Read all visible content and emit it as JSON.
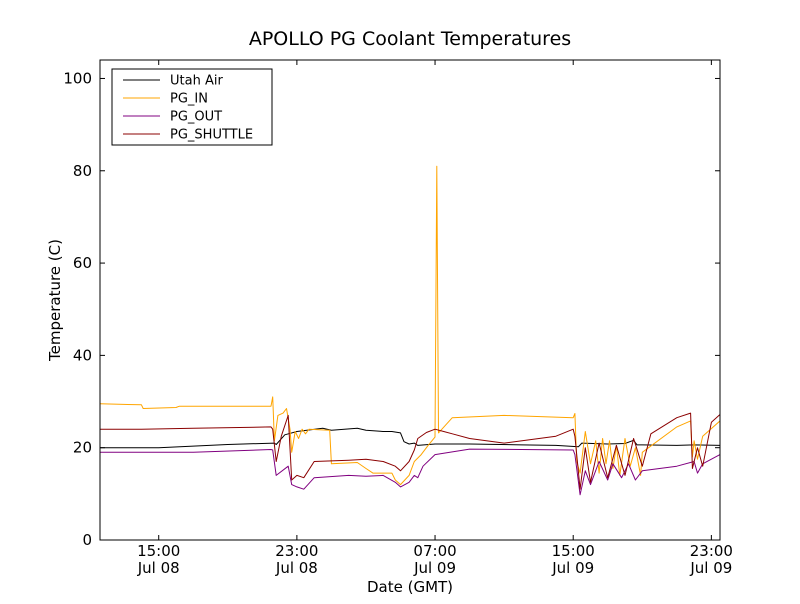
{
  "chart_data": {
    "type": "line",
    "title": "APOLLO PG Coolant Temperatures",
    "xlabel": "Date (GMT)",
    "ylabel": "Temperature (C)",
    "x_units": "hours since Jul 08 00:00 GMT",
    "xlim": [
      11.6,
      47.5
    ],
    "ylim": [
      0,
      104
    ],
    "grid": false,
    "legend_position": "top-left",
    "y_ticks": [
      {
        "value": 0,
        "label": "0"
      },
      {
        "value": 20,
        "label": "20"
      },
      {
        "value": 40,
        "label": "40"
      },
      {
        "value": 60,
        "label": "60"
      },
      {
        "value": 80,
        "label": "80"
      },
      {
        "value": 100,
        "label": "100"
      }
    ],
    "x_ticks": [
      {
        "value": 15,
        "time": "15:00",
        "date": "Jul 08"
      },
      {
        "value": 23,
        "time": "23:00",
        "date": "Jul 08"
      },
      {
        "value": 31,
        "time": "07:00",
        "date": "Jul 09"
      },
      {
        "value": 39,
        "time": "15:00",
        "date": "Jul 09"
      },
      {
        "value": 47,
        "time": "23:00",
        "date": "Jul 09"
      }
    ],
    "series": [
      {
        "name": "Utah Air",
        "color": "#000000",
        "x": [
          11.6,
          15,
          19,
          21.7,
          21.8,
          22.3,
          23,
          24.5,
          25,
          26.5,
          27,
          28,
          28.5,
          29,
          29.2,
          29.5,
          29.8,
          30,
          31,
          33,
          36,
          38,
          39.3,
          39.5,
          41,
          42,
          42.5,
          42.7,
          43,
          45,
          46,
          47.5
        ],
        "y": [
          20,
          20,
          20.7,
          21,
          20.7,
          22.8,
          23.5,
          24.2,
          23.8,
          24.2,
          23.8,
          23.5,
          23.5,
          23.2,
          21.3,
          20.8,
          21,
          20.5,
          20.8,
          20.8,
          20.6,
          20.5,
          20.2,
          21,
          20.8,
          20.9,
          21.6,
          20.6,
          20.6,
          20.5,
          20.6,
          20.5
        ]
      },
      {
        "name": "PG_IN",
        "color": "#ffa500",
        "x": [
          11.6,
          14,
          14.1,
          16,
          16.2,
          21.5,
          21.6,
          21.7,
          21.9,
          22.2,
          22.4,
          22.6,
          22.7,
          22.9,
          23.1,
          23.3,
          23.5,
          23.7,
          24.9,
          25,
          26.5,
          27,
          27.4,
          28.5,
          28.7,
          29,
          29.5,
          29.8,
          30.2,
          30.6,
          31,
          31.1,
          31.2,
          32,
          35,
          39,
          39.1,
          39.2,
          39.4,
          39.7,
          40,
          40.3,
          40.5,
          40.7,
          40.9,
          41.1,
          41.3,
          41.5,
          41.7,
          42,
          42.3,
          42.6,
          42.9,
          43,
          45,
          45.8,
          45.9,
          46,
          46.2,
          46.5,
          47.5
        ],
        "y": [
          29.5,
          29.3,
          28.5,
          28.7,
          29,
          29,
          31,
          21.5,
          27,
          27.5,
          28.5,
          24,
          19,
          23.5,
          22,
          24,
          23,
          24,
          23.8,
          16.5,
          16.8,
          15.5,
          14.5,
          14.5,
          13,
          12,
          14,
          17,
          18.5,
          20.5,
          22.3,
          81,
          23.2,
          26.5,
          27,
          26.5,
          27.4,
          17,
          14.5,
          23.5,
          16.5,
          21.5,
          14.5,
          22,
          16.5,
          21.5,
          15.5,
          20.5,
          14,
          22,
          16,
          20,
          14,
          19,
          24.5,
          25.8,
          18,
          21.5,
          17.5,
          22.5,
          25.8
        ]
      },
      {
        "name": "PG_OUT",
        "color": "#800080",
        "x": [
          11.6,
          14,
          17,
          21.5,
          21.6,
          21.8,
          22.5,
          22.7,
          23,
          23.4,
          24,
          26,
          27,
          28,
          28.7,
          29,
          29.5,
          29.8,
          30,
          30.3,
          31,
          33,
          36,
          39,
          39.1,
          39.4,
          39.7,
          40,
          40.5,
          41,
          41.3,
          41.8,
          42.2,
          42.6,
          43,
          45,
          46,
          46.2,
          46.5,
          47.5
        ],
        "y": [
          19,
          19,
          19,
          19.6,
          19.5,
          14,
          16,
          12,
          11.5,
          11,
          13.5,
          14,
          13.8,
          14,
          12.5,
          11.5,
          12.5,
          14,
          13.5,
          16,
          18.5,
          19.7,
          19.6,
          19.5,
          18.5,
          9.8,
          15,
          12,
          17,
          13,
          16.5,
          13.5,
          16.5,
          13,
          15,
          16,
          17,
          14.5,
          16.5,
          18.5
        ]
      },
      {
        "name": "PG_SHUTTLE",
        "color": "#8b0000",
        "x": [
          11.6,
          14,
          17,
          21.5,
          21.6,
          21.8,
          22.1,
          22.5,
          22.7,
          23,
          23.4,
          24,
          26,
          27,
          28,
          28.7,
          29,
          29.5,
          29.8,
          30,
          30.5,
          31,
          31.5,
          32,
          33,
          35,
          38,
          39,
          39.1,
          39.4,
          39.7,
          40,
          40.5,
          41,
          41.5,
          42,
          42.5,
          43,
          43.5,
          45,
          45.8,
          45.9,
          46.2,
          46.5,
          47,
          47.5
        ],
        "y": [
          24,
          24,
          24.2,
          24.5,
          24,
          17,
          22.5,
          27,
          13,
          14,
          13.5,
          17,
          17.3,
          17.5,
          17,
          16,
          15,
          17,
          19.5,
          22,
          23.3,
          24,
          23.5,
          23,
          22,
          21,
          22.5,
          24,
          22.5,
          11,
          20,
          12.5,
          21,
          13.5,
          20.5,
          14,
          22,
          16,
          23,
          26.5,
          27.5,
          15.5,
          20,
          16,
          25.5,
          27.2
        ]
      }
    ]
  }
}
